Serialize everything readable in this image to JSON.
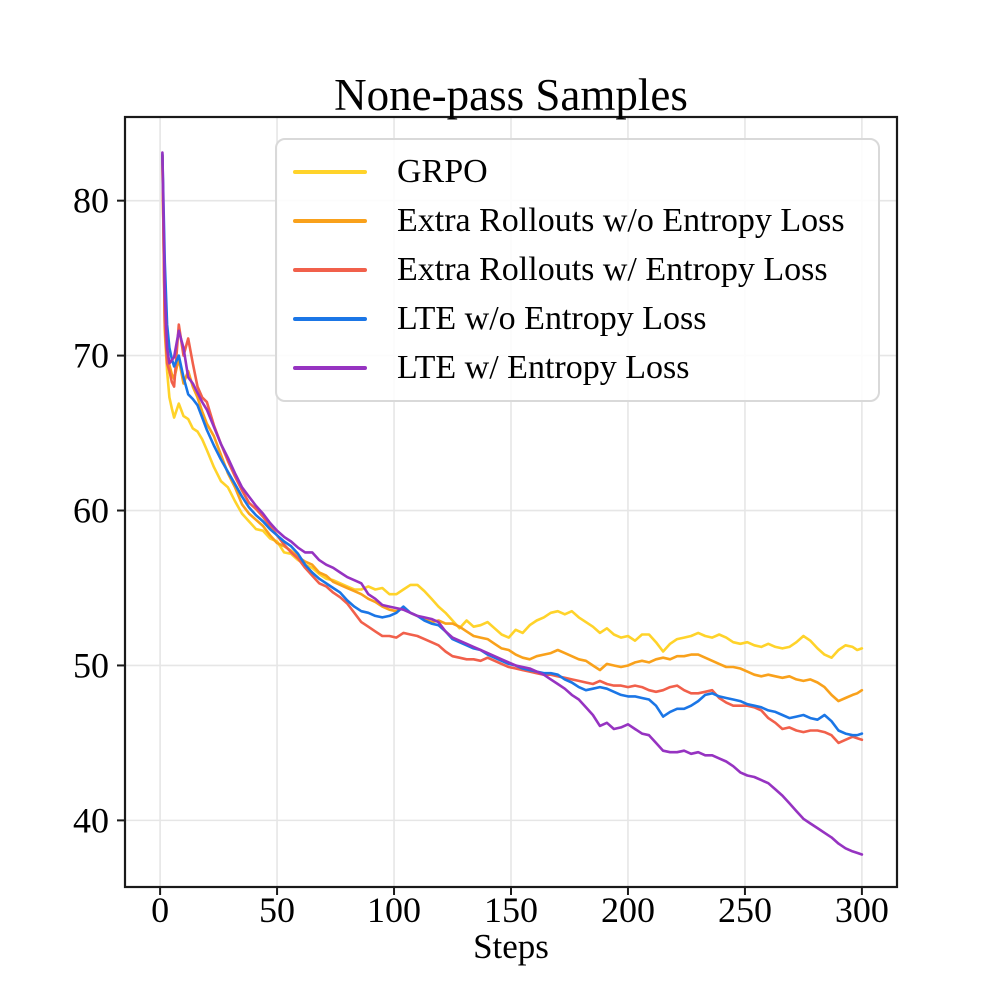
{
  "chart_data": {
    "type": "line",
    "title": "None-pass Samples",
    "xlabel": "Steps",
    "ylabel": "",
    "xlim": [
      -15,
      315
    ],
    "ylim": [
      35.7,
      85.4
    ],
    "x_ticks": [
      0,
      50,
      100,
      150,
      200,
      250,
      300
    ],
    "y_ticks": [
      40,
      50,
      60,
      70,
      80
    ],
    "grid": true,
    "grid_color": "#e6e6e6",
    "frame_color": "#1a1a1a",
    "legend_position": "upper right inside",
    "x": [
      1,
      2,
      3,
      4,
      5,
      6,
      8,
      10,
      12,
      14,
      16,
      18,
      20,
      23,
      26,
      29,
      32,
      35,
      38,
      41,
      44,
      47,
      50,
      53,
      56,
      59,
      62,
      65,
      68,
      71,
      74,
      77,
      80,
      83,
      86,
      89,
      92,
      95,
      98,
      101,
      104,
      107,
      110,
      113,
      116,
      119,
      122,
      125,
      128,
      131,
      134,
      137,
      140,
      143,
      146,
      149,
      152,
      155,
      158,
      161,
      164,
      167,
      170,
      173,
      176,
      179,
      182,
      185,
      188,
      191,
      194,
      197,
      200,
      203,
      206,
      209,
      212,
      215,
      218,
      221,
      224,
      227,
      230,
      233,
      236,
      239,
      242,
      245,
      248,
      251,
      254,
      257,
      260,
      263,
      266,
      269,
      272,
      275,
      278,
      281,
      284,
      287,
      290,
      293,
      296,
      298,
      300
    ],
    "series": [
      {
        "name": "GRPO",
        "color": "#FFD32A",
        "values": [
          82.8,
          71.5,
          69.0,
          67.3,
          66.6,
          66.0,
          66.9,
          66.1,
          65.9,
          65.3,
          65.1,
          64.6,
          63.9,
          62.8,
          61.9,
          61.5,
          60.6,
          59.8,
          59.3,
          58.8,
          58.7,
          58.2,
          58.0,
          57.3,
          57.2,
          56.8,
          56.5,
          56.3,
          55.9,
          55.6,
          55.5,
          55.3,
          55.1,
          54.9,
          54.9,
          55.1,
          54.9,
          55.0,
          54.6,
          54.6,
          54.9,
          55.2,
          55.2,
          54.8,
          54.3,
          53.8,
          53.4,
          52.9,
          52.4,
          52.9,
          52.5,
          52.6,
          52.8,
          52.4,
          52.0,
          51.8,
          52.3,
          52.1,
          52.6,
          52.9,
          53.1,
          53.4,
          53.5,
          53.3,
          53.5,
          53.1,
          52.8,
          52.5,
          52.1,
          52.4,
          52.0,
          51.8,
          51.9,
          51.6,
          52.0,
          52.0,
          51.5,
          50.9,
          51.4,
          51.7,
          51.8,
          51.9,
          52.1,
          51.9,
          51.8,
          52.0,
          51.8,
          51.5,
          51.4,
          51.5,
          51.3,
          51.2,
          51.4,
          51.2,
          51.1,
          51.2,
          51.5,
          51.9,
          51.6,
          51.1,
          50.7,
          50.5,
          51.0,
          51.3,
          51.2,
          51.0,
          51.1
        ]
      },
      {
        "name": "Extra Rollouts w/o Entropy Loss",
        "color": "#F9A11B",
        "values": [
          82.9,
          72.0,
          70.0,
          69.4,
          68.8,
          68.5,
          69.8,
          68.2,
          69.0,
          68.0,
          67.3,
          66.4,
          65.6,
          64.8,
          63.6,
          62.4,
          61.5,
          60.4,
          59.8,
          59.4,
          59.0,
          58.4,
          57.9,
          57.7,
          57.4,
          57.0,
          56.7,
          56.5,
          56.0,
          55.8,
          55.4,
          55.2,
          55.0,
          54.8,
          54.6,
          54.3,
          54.1,
          53.8,
          53.6,
          53.5,
          53.7,
          53.4,
          53.2,
          53.0,
          52.8,
          52.9,
          52.7,
          52.7,
          52.5,
          52.2,
          51.9,
          51.8,
          51.7,
          51.4,
          51.1,
          51.0,
          50.7,
          50.5,
          50.4,
          50.6,
          50.7,
          50.8,
          51.0,
          50.8,
          50.6,
          50.4,
          50.3,
          50.0,
          49.7,
          50.1,
          50.0,
          49.9,
          50.0,
          50.2,
          50.3,
          50.2,
          50.4,
          50.5,
          50.4,
          50.6,
          50.6,
          50.7,
          50.7,
          50.5,
          50.3,
          50.1,
          49.9,
          49.9,
          49.8,
          49.6,
          49.4,
          49.3,
          49.4,
          49.3,
          49.2,
          49.3,
          49.1,
          49.0,
          49.1,
          48.9,
          48.6,
          48.1,
          47.7,
          47.9,
          48.1,
          48.2,
          48.4
        ]
      },
      {
        "name": "Extra Rollouts w/ Entropy Loss",
        "color": "#F1604B",
        "values": [
          82.9,
          72.0,
          69.5,
          69.0,
          68.3,
          68.0,
          72.0,
          70.0,
          71.1,
          69.5,
          68.0,
          67.3,
          67.0,
          65.5,
          64.3,
          63.2,
          62.2,
          61.3,
          60.5,
          60.1,
          59.6,
          59.0,
          58.4,
          57.8,
          57.3,
          56.9,
          56.3,
          55.8,
          55.3,
          55.1,
          54.7,
          54.4,
          54.0,
          53.4,
          52.8,
          52.5,
          52.2,
          51.9,
          51.9,
          51.8,
          52.1,
          52.0,
          51.9,
          51.7,
          51.5,
          51.3,
          50.9,
          50.6,
          50.5,
          50.4,
          50.4,
          50.3,
          50.5,
          50.3,
          50.1,
          49.9,
          49.8,
          49.7,
          49.6,
          49.5,
          49.4,
          49.4,
          49.3,
          49.2,
          49.1,
          49.0,
          48.9,
          48.8,
          49.0,
          48.8,
          48.7,
          48.7,
          48.6,
          48.7,
          48.6,
          48.4,
          48.3,
          48.4,
          48.6,
          48.7,
          48.4,
          48.2,
          48.2,
          48.3,
          48.4,
          47.9,
          47.6,
          47.4,
          47.4,
          47.4,
          47.3,
          47.1,
          46.6,
          46.3,
          45.9,
          46.0,
          45.8,
          45.7,
          45.8,
          45.8,
          45.7,
          45.5,
          45.0,
          45.2,
          45.4,
          45.3,
          45.2
        ]
      },
      {
        "name": "LTE w/o Entropy Loss",
        "color": "#1B76E6",
        "values": [
          83.0,
          76.0,
          72.0,
          70.5,
          69.8,
          69.3,
          70.0,
          68.6,
          67.5,
          67.2,
          66.8,
          66.0,
          65.2,
          64.2,
          63.3,
          62.5,
          61.7,
          60.9,
          60.2,
          59.7,
          59.3,
          58.8,
          58.4,
          58.0,
          57.7,
          57.2,
          56.5,
          56.0,
          55.6,
          55.3,
          55.0,
          54.7,
          54.2,
          53.8,
          53.5,
          53.4,
          53.2,
          53.1,
          53.2,
          53.4,
          53.8,
          53.4,
          53.2,
          52.9,
          52.7,
          52.6,
          52.2,
          51.7,
          51.5,
          51.3,
          51.1,
          51.0,
          50.7,
          50.5,
          50.3,
          50.1,
          50.0,
          49.8,
          49.7,
          49.6,
          49.5,
          49.5,
          49.4,
          49.1,
          48.9,
          48.6,
          48.4,
          48.5,
          48.6,
          48.5,
          48.3,
          48.1,
          48.0,
          48.0,
          47.9,
          47.8,
          47.4,
          46.7,
          47.0,
          47.2,
          47.2,
          47.4,
          47.7,
          48.1,
          48.2,
          48.0,
          47.9,
          47.8,
          47.7,
          47.5,
          47.4,
          47.3,
          47.1,
          47.0,
          46.8,
          46.6,
          46.7,
          46.8,
          46.6,
          46.5,
          46.8,
          46.4,
          45.8,
          45.6,
          45.5,
          45.5,
          45.6
        ]
      },
      {
        "name": "LTE w/ Entropy Loss",
        "color": "#9633C1",
        "values": [
          83.1,
          74.0,
          70.5,
          69.5,
          69.7,
          69.9,
          71.6,
          70.5,
          68.6,
          68.2,
          67.6,
          67.0,
          66.5,
          65.4,
          64.3,
          63.4,
          62.4,
          61.5,
          60.9,
          60.3,
          59.8,
          59.2,
          58.7,
          58.3,
          58.0,
          57.6,
          57.3,
          57.3,
          56.8,
          56.5,
          56.3,
          56.0,
          55.7,
          55.5,
          55.3,
          54.6,
          54.3,
          53.9,
          53.8,
          53.7,
          53.6,
          53.4,
          53.2,
          53.1,
          53.0,
          52.8,
          52.2,
          51.8,
          51.6,
          51.4,
          51.2,
          51.0,
          50.8,
          50.6,
          50.4,
          50.2,
          50.0,
          49.9,
          49.8,
          49.6,
          49.4,
          49.1,
          48.8,
          48.5,
          48.1,
          47.8,
          47.3,
          46.8,
          46.1,
          46.3,
          45.9,
          46.0,
          46.2,
          45.9,
          45.6,
          45.5,
          45.0,
          44.5,
          44.4,
          44.4,
          44.5,
          44.3,
          44.4,
          44.2,
          44.2,
          44.0,
          43.8,
          43.5,
          43.1,
          42.9,
          42.8,
          42.6,
          42.4,
          42.0,
          41.6,
          41.1,
          40.6,
          40.1,
          39.8,
          39.5,
          39.2,
          38.9,
          38.5,
          38.2,
          38.0,
          37.9,
          37.8
        ]
      }
    ]
  }
}
